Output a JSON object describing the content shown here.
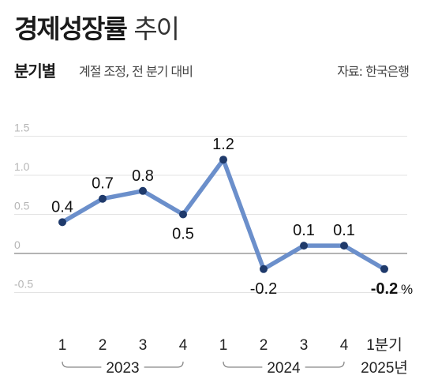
{
  "header": {
    "title_bold": "경제성장률",
    "title_light": "추이",
    "subtitle": "분기별",
    "subnote": "계절 조정, 전 분기 대비",
    "source": "자료: 한국은행"
  },
  "chart_data": {
    "type": "line",
    "categories": [
      "1",
      "2",
      "3",
      "4",
      "1",
      "2",
      "3",
      "4",
      "1분기"
    ],
    "values": [
      0.4,
      0.7,
      0.8,
      0.5,
      1.2,
      -0.2,
      0.1,
      0.1,
      -0.2
    ],
    "value_labels": [
      "0.4",
      "0.7",
      "0.8",
      "0.5",
      "1.2",
      "-0.2",
      "0.1",
      "0.1",
      "-0.2"
    ],
    "last_unit": "%",
    "year_groups": [
      {
        "label": "2023",
        "from": 0,
        "to": 3
      },
      {
        "label": "2024",
        "from": 4,
        "to": 7
      },
      {
        "label": "2025년",
        "from": 8,
        "to": 8
      }
    ],
    "yticks": [
      "1.5",
      "1.0",
      "0.5",
      "0",
      "-0.5"
    ],
    "ytick_values": [
      1.5,
      1.0,
      0.5,
      0,
      -0.5
    ],
    "ylim": [
      -0.5,
      1.5
    ],
    "grid": true,
    "line_color": "#6b8fcb",
    "marker_color": "#1f3a6b"
  }
}
